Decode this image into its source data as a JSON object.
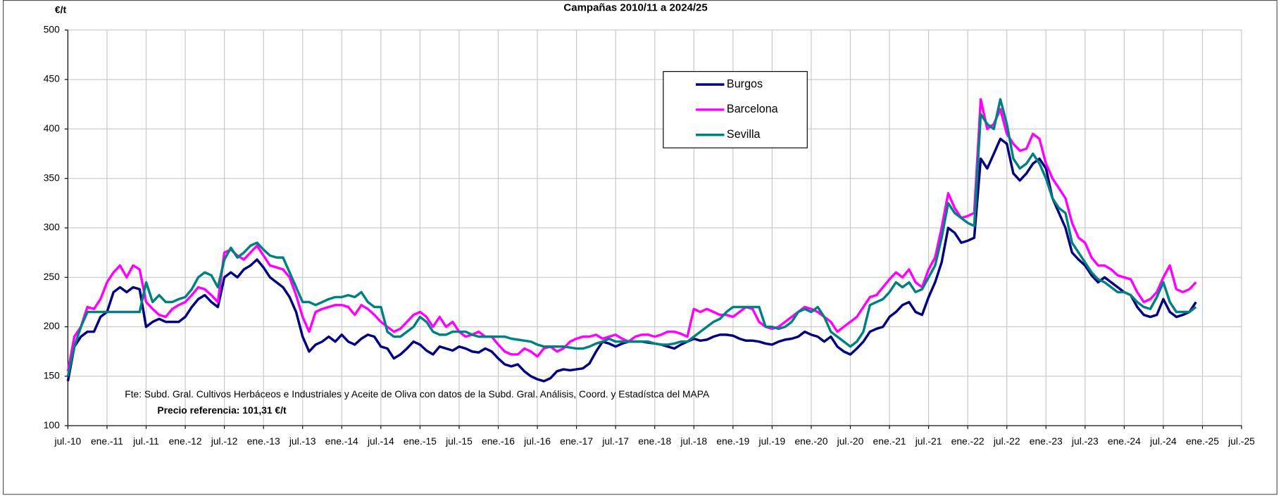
{
  "chart_data": {
    "type": "line",
    "title": "Campañas 2010/11 a 2024/25",
    "y_label": "€/t",
    "source": "Fte: Subd. Gral. Cultivos Herbáceos e Industriales y Aceite de Oliva con datos de la Subd. Gral. Análisis, Coord. y Estadístca del MAPA",
    "note": "Precio referencia: 101,31 €/t",
    "ylim": [
      100,
      500
    ],
    "yticks": [
      100,
      150,
      200,
      250,
      300,
      350,
      400,
      450,
      500
    ],
    "xlim": [
      "2010-07",
      "2025-07"
    ],
    "xticks": [
      {
        "value": "2010-07",
        "label": "jul.-10"
      },
      {
        "value": "2011-01",
        "label": "ene.-11"
      },
      {
        "value": "2011-07",
        "label": "jul.-11"
      },
      {
        "value": "2012-01",
        "label": "ene.-12"
      },
      {
        "value": "2012-07",
        "label": "jul.-12"
      },
      {
        "value": "2013-01",
        "label": "ene.-13"
      },
      {
        "value": "2013-07",
        "label": "jul.-13"
      },
      {
        "value": "2014-01",
        "label": "ene.-14"
      },
      {
        "value": "2014-07",
        "label": "jul.-14"
      },
      {
        "value": "2015-01",
        "label": "ene.-15"
      },
      {
        "value": "2015-07",
        "label": "jul.-15"
      },
      {
        "value": "2016-01",
        "label": "ene.-16"
      },
      {
        "value": "2016-07",
        "label": "jul.-16"
      },
      {
        "value": "2017-01",
        "label": "ene.-17"
      },
      {
        "value": "2017-07",
        "label": "jul.-17"
      },
      {
        "value": "2018-01",
        "label": "ene.-18"
      },
      {
        "value": "2018-07",
        "label": "jul.-18"
      },
      {
        "value": "2019-01",
        "label": "ene.-19"
      },
      {
        "value": "2019-07",
        "label": "jul.-19"
      },
      {
        "value": "2020-01",
        "label": "ene.-20"
      },
      {
        "value": "2020-07",
        "label": "jul.-20"
      },
      {
        "value": "2021-01",
        "label": "ene.-21"
      },
      {
        "value": "2021-07",
        "label": "jul.-21"
      },
      {
        "value": "2022-01",
        "label": "ene.-22"
      },
      {
        "value": "2022-07",
        "label": "jul.-22"
      },
      {
        "value": "2023-01",
        "label": "ene.-23"
      },
      {
        "value": "2023-07",
        "label": "jul.-23"
      },
      {
        "value": "2024-01",
        "label": "ene.-24"
      },
      {
        "value": "2024-07",
        "label": "jul.-24"
      },
      {
        "value": "2025-01",
        "label": "ene.-25"
      },
      {
        "value": "2025-07",
        "label": "jul.-25"
      }
    ],
    "grid": true,
    "x": [
      "2010-07",
      "2010-08",
      "2010-09",
      "2010-10",
      "2010-11",
      "2010-12",
      "2011-01",
      "2011-02",
      "2011-03",
      "2011-04",
      "2011-05",
      "2011-06",
      "2011-07",
      "2011-08",
      "2011-09",
      "2011-10",
      "2011-11",
      "2011-12",
      "2012-01",
      "2012-02",
      "2012-03",
      "2012-04",
      "2012-05",
      "2012-06",
      "2012-07",
      "2012-08",
      "2012-09",
      "2012-10",
      "2012-11",
      "2012-12",
      "2013-01",
      "2013-02",
      "2013-03",
      "2013-04",
      "2013-05",
      "2013-06",
      "2013-07",
      "2013-08",
      "2013-09",
      "2013-10",
      "2013-11",
      "2013-12",
      "2014-01",
      "2014-02",
      "2014-03",
      "2014-04",
      "2014-05",
      "2014-06",
      "2014-07",
      "2014-08",
      "2014-09",
      "2014-10",
      "2014-11",
      "2014-12",
      "2015-01",
      "2015-02",
      "2015-03",
      "2015-04",
      "2015-05",
      "2015-06",
      "2015-07",
      "2015-08",
      "2015-09",
      "2015-10",
      "2015-11",
      "2015-12",
      "2016-01",
      "2016-02",
      "2016-03",
      "2016-04",
      "2016-05",
      "2016-06",
      "2016-07",
      "2016-08",
      "2016-09",
      "2016-10",
      "2016-11",
      "2016-12",
      "2017-01",
      "2017-02",
      "2017-03",
      "2017-04",
      "2017-05",
      "2017-06",
      "2017-07",
      "2017-08",
      "2017-09",
      "2017-10",
      "2017-11",
      "2017-12",
      "2018-01",
      "2018-02",
      "2018-03",
      "2018-04",
      "2018-05",
      "2018-06",
      "2018-07",
      "2018-08",
      "2018-09",
      "2018-10",
      "2018-11",
      "2018-12",
      "2019-01",
      "2019-02",
      "2019-03",
      "2019-04",
      "2019-05",
      "2019-06",
      "2019-07",
      "2019-08",
      "2019-09",
      "2019-10",
      "2019-11",
      "2019-12",
      "2020-01",
      "2020-02",
      "2020-03",
      "2020-04",
      "2020-05",
      "2020-06",
      "2020-07",
      "2020-08",
      "2020-09",
      "2020-10",
      "2020-11",
      "2020-12",
      "2021-01",
      "2021-02",
      "2021-03",
      "2021-04",
      "2021-05",
      "2021-06",
      "2021-07",
      "2021-08",
      "2021-09",
      "2021-10",
      "2021-11",
      "2021-12",
      "2022-01",
      "2022-02",
      "2022-03",
      "2022-04",
      "2022-05",
      "2022-06",
      "2022-07",
      "2022-08",
      "2022-09",
      "2022-10",
      "2022-11",
      "2022-12",
      "2023-01",
      "2023-02",
      "2023-03",
      "2023-04",
      "2023-05",
      "2023-06",
      "2023-07",
      "2023-08",
      "2023-09",
      "2023-10",
      "2023-11",
      "2023-12",
      "2024-01",
      "2024-02",
      "2024-03",
      "2024-04",
      "2024-05",
      "2024-06",
      "2024-07",
      "2024-08",
      "2024-09",
      "2024-10",
      "2024-11",
      "2024-12"
    ],
    "series": [
      {
        "name": "Burgos",
        "color": "#000080",
        "values": [
          145,
          180,
          190,
          195,
          195,
          210,
          215,
          235,
          240,
          235,
          240,
          238,
          200,
          205,
          208,
          205,
          205,
          205,
          210,
          220,
          228,
          232,
          225,
          220,
          250,
          255,
          250,
          258,
          262,
          268,
          260,
          250,
          245,
          240,
          230,
          215,
          190,
          175,
          182,
          185,
          190,
          185,
          192,
          185,
          182,
          188,
          192,
          190,
          180,
          178,
          168,
          172,
          178,
          185,
          182,
          176,
          172,
          180,
          178,
          176,
          180,
          178,
          175,
          174,
          178,
          175,
          168,
          162,
          160,
          162,
          155,
          150,
          147,
          145,
          148,
          155,
          157,
          156,
          157,
          158,
          163,
          175,
          185,
          183,
          180,
          183,
          185,
          185,
          185,
          184,
          183,
          182,
          180,
          178,
          182,
          185,
          188,
          186,
          187,
          190,
          192,
          192,
          191,
          188,
          186,
          186,
          185,
          183,
          182,
          185,
          187,
          188,
          190,
          195,
          192,
          190,
          185,
          190,
          180,
          175,
          172,
          178,
          185,
          195,
          198,
          200,
          210,
          215,
          222,
          225,
          215,
          212,
          230,
          245,
          265,
          300,
          295,
          285,
          287,
          290,
          370,
          360,
          375,
          390,
          385,
          355,
          348,
          355,
          365,
          370,
          360,
          330,
          315,
          300,
          275,
          268,
          262,
          252,
          245,
          250,
          245,
          240,
          235,
          232,
          220,
          212,
          210,
          212,
          228,
          215,
          210,
          212,
          215,
          225
        ]
      },
      {
        "name": "Barcelona",
        "color": "#ff00ff",
        "values": [
          155,
          190,
          200,
          220,
          218,
          228,
          245,
          255,
          262,
          250,
          262,
          258,
          225,
          218,
          212,
          210,
          218,
          222,
          225,
          232,
          240,
          238,
          232,
          225,
          275,
          278,
          272,
          268,
          275,
          282,
          272,
          262,
          260,
          258,
          250,
          232,
          210,
          195,
          215,
          218,
          220,
          222,
          222,
          220,
          212,
          222,
          218,
          212,
          205,
          200,
          195,
          198,
          205,
          212,
          215,
          210,
          200,
          210,
          200,
          205,
          195,
          190,
          192,
          195,
          190,
          190,
          182,
          175,
          172,
          172,
          178,
          175,
          170,
          178,
          180,
          175,
          178,
          185,
          188,
          190,
          190,
          192,
          188,
          190,
          192,
          188,
          185,
          190,
          192,
          192,
          190,
          192,
          195,
          195,
          193,
          190,
          218,
          215,
          218,
          215,
          212,
          212,
          210,
          215,
          220,
          218,
          205,
          200,
          198,
          200,
          205,
          210,
          215,
          220,
          218,
          215,
          210,
          205,
          195,
          200,
          205,
          210,
          220,
          230,
          232,
          240,
          248,
          255,
          250,
          258,
          245,
          240,
          258,
          270,
          300,
          335,
          320,
          310,
          312,
          315,
          430,
          400,
          405,
          420,
          395,
          385,
          378,
          380,
          395,
          390,
          365,
          350,
          340,
          330,
          305,
          290,
          285,
          270,
          262,
          262,
          258,
          252,
          250,
          248,
          235,
          225,
          228,
          235,
          250,
          262,
          238,
          235,
          238,
          245
        ]
      },
      {
        "name": "Sevilla",
        "color": "#008080",
        "values": [
          150,
          180,
          200,
          215,
          215,
          215,
          215,
          215,
          215,
          215,
          215,
          215,
          245,
          225,
          232,
          225,
          225,
          228,
          230,
          238,
          250,
          255,
          252,
          240,
          268,
          280,
          270,
          275,
          282,
          285,
          278,
          272,
          270,
          270,
          255,
          240,
          225,
          225,
          222,
          225,
          228,
          230,
          230,
          232,
          230,
          235,
          225,
          220,
          220,
          195,
          190,
          190,
          195,
          200,
          210,
          205,
          195,
          192,
          192,
          195,
          195,
          195,
          192,
          190,
          190,
          190,
          190,
          190,
          188,
          187,
          186,
          185,
          182,
          180,
          180,
          180,
          180,
          179,
          178,
          178,
          180,
          183,
          185,
          188,
          185,
          185,
          185,
          185,
          185,
          185,
          183,
          182,
          182,
          183,
          185,
          185,
          190,
          195,
          200,
          205,
          208,
          215,
          220,
          220,
          220,
          220,
          220,
          200,
          200,
          198,
          200,
          205,
          215,
          218,
          215,
          220,
          210,
          195,
          190,
          185,
          180,
          185,
          195,
          222,
          225,
          228,
          235,
          245,
          240,
          245,
          235,
          238,
          250,
          262,
          290,
          325,
          315,
          310,
          305,
          302,
          415,
          405,
          400,
          430,
          405,
          370,
          360,
          365,
          375,
          365,
          350,
          330,
          320,
          315,
          285,
          275,
          265,
          255,
          248,
          245,
          240,
          235,
          235,
          232,
          225,
          220,
          218,
          230,
          245,
          225,
          215,
          215,
          215,
          220
        ]
      }
    ]
  }
}
